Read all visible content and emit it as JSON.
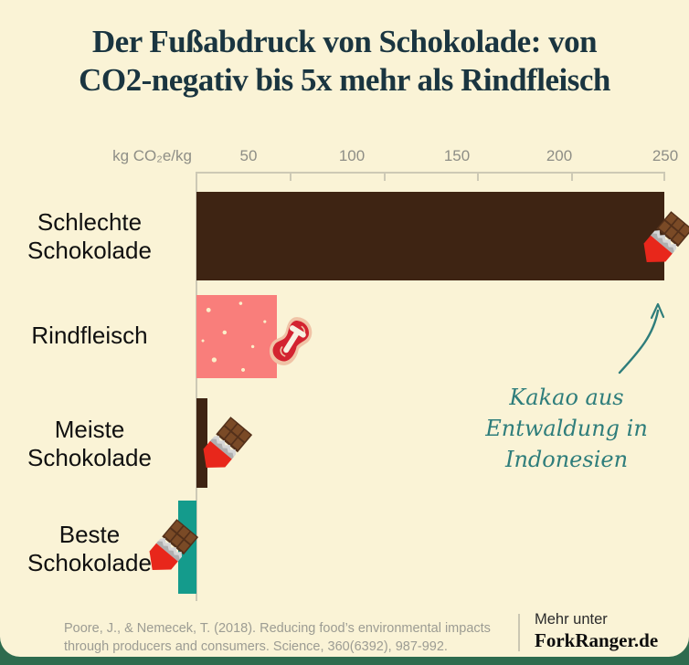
{
  "title": {
    "line1": "Der Fußabdruck von Schokolade: von",
    "line2": "CO2-negativ bis 5x mehr als Rindfleisch"
  },
  "chart_data": {
    "type": "bar",
    "orientation": "horizontal",
    "title": "Der Fußabdruck von Schokolade: von CO2-negativ bis 5x mehr als Rindfleisch",
    "xlabel": "kg CO₂e/kg",
    "xlim": [
      -12,
      255
    ],
    "axis_ticks": [
      "50",
      "100",
      "150",
      "200",
      "250"
    ],
    "grid": false,
    "categories": [
      "Schlechte Schokolade",
      "Rindfleisch",
      "Meiste Schokolade",
      "Beste Schokolade"
    ],
    "values": [
      250,
      43,
      6,
      -10
    ],
    "bar_colors": [
      "#3E2413",
      "#F97E7B",
      "#3E2413",
      "#149B8C"
    ],
    "icons": [
      "chocolate-bar-icon",
      "steak-icon",
      "chocolate-bar-icon",
      "chocolate-bar-icon"
    ],
    "annotation": {
      "lines": [
        "Kakao aus",
        "Entwaldung in",
        "Indonesien"
      ],
      "color": "#2E7D7B",
      "points_to": "end of Schlechte Schokolade bar"
    }
  },
  "category_labels": [
    {
      "line1": "Schlechte",
      "line2": "Schokolade"
    },
    {
      "line1": "Rindfleisch",
      "line2": ""
    },
    {
      "line1": "Meiste",
      "line2": "Schokolade"
    },
    {
      "line1": "Beste",
      "line2": "Schokolade"
    }
  ],
  "footer": {
    "citation_line1": "Poore, J., & Nemecek, T. (2018). Reducing food’s environmental impacts",
    "citation_line2": "through producers and consumers. Science, 360(6392), 987-992.",
    "more_label": "Mehr unter",
    "brand": "ForkRanger.de"
  },
  "colors": {
    "background": "#FAF3D6",
    "frame_green": "#2E6B4E",
    "title_text": "#1A3540",
    "axis_text": "#8E8E86",
    "axis_line": "#CDC9B5",
    "annotation_teal": "#2E7D7B",
    "citation_gray": "#9C9C93"
  }
}
